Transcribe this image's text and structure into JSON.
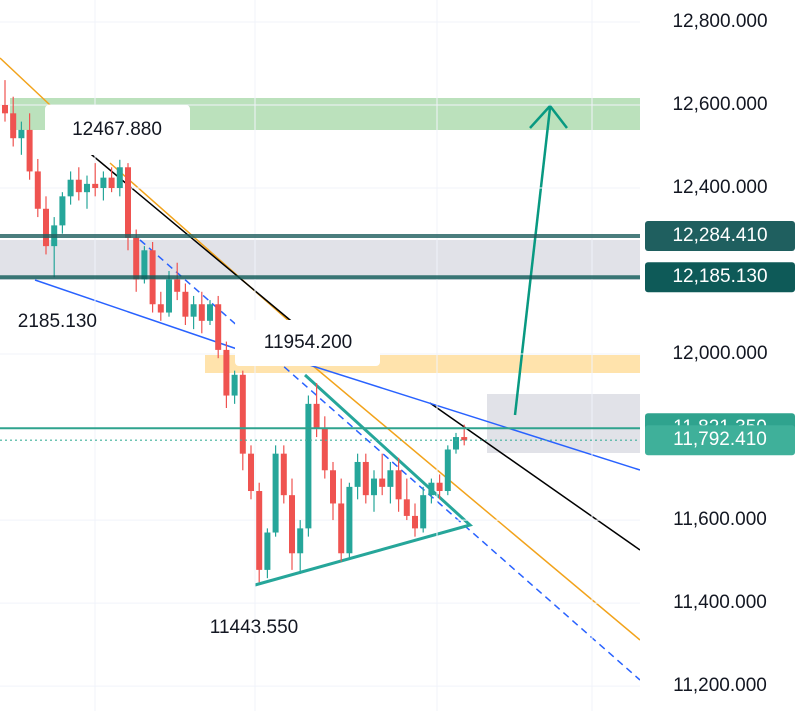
{
  "chart_data": {
    "type": "candlestick",
    "categories": [
      null,
      null,
      null,
      null,
      null,
      null,
      null,
      null,
      null,
      null,
      null,
      null,
      null,
      null,
      null,
      null,
      null,
      null,
      null,
      null,
      null,
      null,
      null,
      null,
      null,
      null,
      null,
      null,
      null,
      null,
      null,
      null,
      null,
      null,
      null,
      null,
      null,
      null,
      null,
      null,
      null,
      null,
      null,
      null,
      null,
      null,
      null,
      null,
      null,
      null,
      null,
      null,
      null,
      null,
      null,
      null,
      null
    ],
    "open": [
      12600,
      12580,
      12520,
      12540,
      12440,
      12350,
      12260,
      12310,
      12380,
      12420,
      12390,
      12410,
      12400,
      12425,
      12400,
      12450,
      12280,
      12180,
      12250,
      12120,
      12100,
      12180,
      12150,
      12090,
      12120,
      12080,
      12120,
      12010,
      11900,
      11950,
      11760,
      11670,
      11480,
      11570,
      11760,
      11660,
      11520,
      11580,
      11880,
      11820,
      11720,
      11640,
      11520,
      11680,
      11740,
      11660,
      11700,
      11680,
      11720,
      11650,
      11610,
      11580,
      11660,
      11690,
      11670,
      11770,
      11800
    ],
    "high": [
      12660,
      12620,
      12560,
      12580,
      12470,
      12380,
      12330,
      12390,
      12440,
      12450,
      12430,
      12460,
      12440,
      12450,
      12468,
      12460,
      12300,
      12260,
      12270,
      12150,
      12200,
      12220,
      12170,
      12140,
      12150,
      12130,
      12140,
      12030,
      11960,
      11960,
      11780,
      11690,
      11580,
      11780,
      11780,
      11700,
      11600,
      11900,
      11930,
      11850,
      11740,
      11700,
      11690,
      11760,
      11760,
      11720,
      11760,
      11740,
      11750,
      11700,
      11640,
      11680,
      11700,
      11710,
      11780,
      11810,
      11830
    ],
    "low": [
      12560,
      12500,
      12480,
      12420,
      12330,
      12240,
      12185,
      12290,
      12360,
      12370,
      12350,
      12380,
      12370,
      12390,
      12380,
      12250,
      12150,
      12170,
      12100,
      12080,
      12090,
      12130,
      12070,
      12060,
      12050,
      12070,
      11990,
      11870,
      11880,
      11720,
      11650,
      11450,
      11460,
      11560,
      11640,
      11480,
      11470,
      11560,
      11800,
      11700,
      11600,
      11500,
      11510,
      11650,
      11640,
      11620,
      11660,
      11640,
      11620,
      11600,
      11560,
      11570,
      11640,
      11650,
      11660,
      11760,
      11780
    ],
    "close": [
      12580,
      12520,
      12540,
      12440,
      12350,
      12260,
      12310,
      12380,
      12420,
      12390,
      12410,
      12400,
      12425,
      12400,
      12450,
      12280,
      12180,
      12250,
      12120,
      12100,
      12180,
      12150,
      12090,
      12120,
      12080,
      12120,
      12010,
      11900,
      11950,
      11760,
      11670,
      11480,
      11570,
      11760,
      11660,
      11520,
      11580,
      11880,
      11820,
      11720,
      11640,
      11520,
      11680,
      11740,
      11660,
      11700,
      11680,
      11720,
      11650,
      11610,
      11580,
      11660,
      11690,
      11670,
      11770,
      11800,
      11792.41
    ],
    "up_color": "#26a69a",
    "down_color": "#ef5350",
    "ylim": [
      11140,
      12853
    ],
    "yticks": [
      {
        "value": 11200,
        "label": "11,200.000"
      },
      {
        "value": 11400,
        "label": "11,400.000"
      },
      {
        "value": 11600,
        "label": "11,600.000"
      },
      {
        "value": 12000,
        "label": "12,000.000"
      },
      {
        "value": 12400,
        "label": "12,400.000"
      },
      {
        "value": 12600,
        "label": "12,600.000"
      },
      {
        "value": 12800,
        "label": "12,800.000"
      }
    ],
    "grid": true,
    "price_lines": [
      {
        "value": 12284.41,
        "label": "12,284.410",
        "color": "#1f5f5f"
      },
      {
        "value": 12185.13,
        "label": "12,185.130",
        "color": "#0e5a58"
      },
      {
        "value": 11821.35,
        "label": "11,821.350",
        "color": "#2fa38e"
      },
      {
        "value": 11792.41,
        "label": "11,792.410",
        "color": "#3fb09a"
      }
    ],
    "annotations": [
      "12467.880",
      "2185.130",
      "11954.200",
      "11443.550"
    ]
  }
}
